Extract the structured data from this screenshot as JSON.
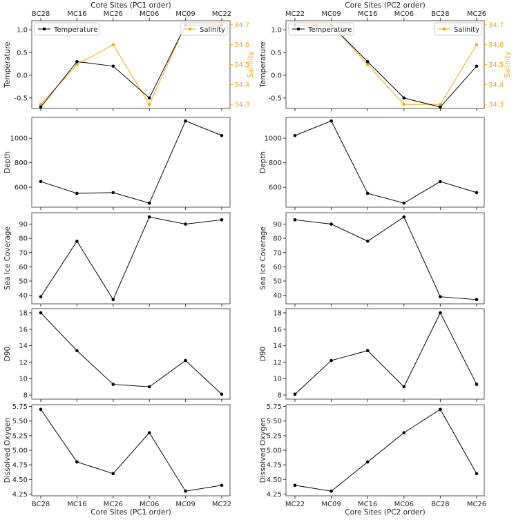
{
  "chart_data": [
    {
      "type": "line",
      "title": "",
      "xlabel": "Core Sites (PC1 order)",
      "categories": [
        "BC28",
        "MC16",
        "MC26",
        "MC06",
        "MC09",
        "MC22"
      ],
      "subplots": [
        {
          "ylabel": "Temperature",
          "ylim": [
            -0.73,
            1.2
          ],
          "yticks": [
            "-0.5",
            "0.0",
            "0.5",
            "1.0"
          ],
          "series": [
            {
              "name": "Temperature",
              "color": "#000000",
              "values": [
                -0.7,
                0.3,
                0.2,
                -0.5,
                1.1,
                1.1
              ]
            }
          ],
          "secondary": {
            "ylabel": "Salinity",
            "ylim": [
              34.28,
              34.72
            ],
            "yticks": [
              "34.3",
              "34.4",
              "34.5",
              "34.6",
              "34.7"
            ],
            "series": [
              {
                "name": "Salinity",
                "color": "#ffa500",
                "values": [
                  34.3,
                  34.5,
                  34.6,
                  34.3,
                  34.7,
                  34.7
                ]
              }
            ]
          },
          "legend": [
            "top-left",
            "top-right"
          ]
        },
        {
          "ylabel": "Depth",
          "ylim": [
            437,
            1170
          ],
          "yticks": [
            "600",
            "800",
            "1000"
          ],
          "series": [
            {
              "name": "Depth",
              "color": "#000000",
              "values": [
                646,
                550,
                556,
                470,
                1141,
                1022
              ]
            }
          ]
        },
        {
          "ylabel": "Sea Ice Coverage",
          "ylim": [
            34,
            98
          ],
          "yticks": [
            "40",
            "50",
            "60",
            "70",
            "80",
            "90"
          ],
          "series": [
            {
              "name": "Sea Ice Coverage",
              "color": "#000000",
              "values": [
                39,
                78,
                37,
                95,
                90,
                93
              ]
            }
          ]
        },
        {
          "ylabel": "D90",
          "ylim": [
            7.5,
            18.5
          ],
          "yticks": [
            "8",
            "10",
            "12",
            "14",
            "16",
            "18"
          ],
          "series": [
            {
              "name": "D90",
              "color": "#000000",
              "values": [
                18,
                13.4,
                9.3,
                9.0,
                12.2,
                8.1
              ]
            }
          ]
        },
        {
          "ylabel": "Dissolved Oxygen",
          "ylim": [
            4.22,
            5.78
          ],
          "yticks": [
            "4.25",
            "4.50",
            "4.75",
            "5.00",
            "5.25",
            "5.50",
            "5.75"
          ],
          "series": [
            {
              "name": "Dissolved Oxygen",
              "color": "#000000",
              "values": [
                5.7,
                4.8,
                4.6,
                5.3,
                4.3,
                4.4
              ]
            }
          ]
        }
      ]
    },
    {
      "type": "line",
      "title": "",
      "xlabel": "Core Sites (PC2 order)",
      "categories": [
        "MC22",
        "MC09",
        "MC16",
        "MC06",
        "BC28",
        "MC26"
      ],
      "subplots": [
        {
          "ylabel": "Temperature",
          "ylim": [
            -0.73,
            1.2
          ],
          "yticks": [
            "-0.5",
            "0.0",
            "0.5",
            "1.0"
          ],
          "series": [
            {
              "name": "Temperature",
              "color": "#000000",
              "values": [
                1.1,
                1.1,
                0.3,
                -0.5,
                -0.7,
                0.2
              ]
            }
          ],
          "secondary": {
            "ylabel": "Salinity",
            "ylim": [
              34.28,
              34.72
            ],
            "yticks": [
              "34.3",
              "34.4",
              "34.5",
              "34.6",
              "34.7"
            ],
            "series": [
              {
                "name": "Salinity",
                "color": "#ffa500",
                "values": [
                  34.7,
                  34.7,
                  34.5,
                  34.3,
                  34.3,
                  34.6
                ]
              }
            ]
          },
          "legend": [
            "top-left",
            "top-right"
          ]
        },
        {
          "ylabel": "Depth",
          "ylim": [
            437,
            1170
          ],
          "yticks": [
            "600",
            "800",
            "1000"
          ],
          "series": [
            {
              "name": "Depth",
              "color": "#000000",
              "values": [
                1022,
                1141,
                550,
                470,
                646,
                556
              ]
            }
          ]
        },
        {
          "ylabel": "Sea Ice Coverage",
          "ylim": [
            34,
            98
          ],
          "yticks": [
            "40",
            "50",
            "60",
            "70",
            "80",
            "90"
          ],
          "series": [
            {
              "name": "Sea Ice Coverage",
              "color": "#000000",
              "values": [
                93,
                90,
                78,
                95,
                39,
                37
              ]
            }
          ]
        },
        {
          "ylabel": "D90",
          "ylim": [
            7.5,
            18.5
          ],
          "yticks": [
            "8",
            "10",
            "12",
            "14",
            "16",
            "18"
          ],
          "series": [
            {
              "name": "D90",
              "color": "#000000",
              "values": [
                8.1,
                12.2,
                13.4,
                9.0,
                18,
                9.3
              ]
            }
          ]
        },
        {
          "ylabel": "Dissolved Oxygen",
          "ylim": [
            4.22,
            5.78
          ],
          "yticks": [
            "4.25",
            "4.50",
            "4.75",
            "5.00",
            "5.25",
            "5.50",
            "5.75"
          ],
          "series": [
            {
              "name": "Dissolved Oxygen",
              "color": "#000000",
              "values": [
                4.4,
                4.3,
                4.8,
                5.3,
                5.7,
                4.6
              ]
            }
          ]
        }
      ]
    }
  ]
}
